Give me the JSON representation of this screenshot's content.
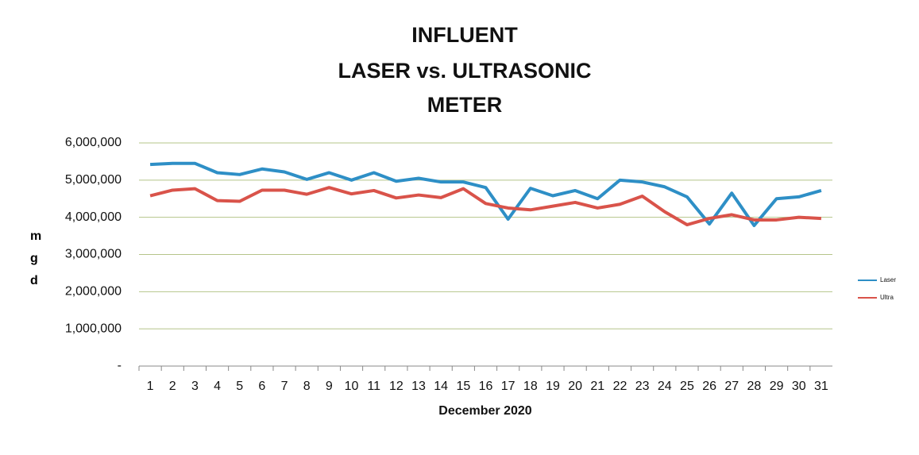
{
  "chart_data": {
    "type": "line",
    "title": [
      "INFLUENT",
      "LASER  vs. ULTRASONIC",
      "METER"
    ],
    "y_label": "mgd",
    "x_label": "December 2020",
    "categories": [
      "1",
      "2",
      "3",
      "4",
      "5",
      "6",
      "7",
      "8",
      "9",
      "10",
      "11",
      "12",
      "13",
      "14",
      "15",
      "16",
      "17",
      "18",
      "19",
      "20",
      "21",
      "22",
      "23",
      "24",
      "25",
      "26",
      "27",
      "28",
      "29",
      "30",
      "31"
    ],
    "series": [
      {
        "name": "Laser",
        "color": "#2e8fc6",
        "values": [
          5420000,
          5450000,
          5450000,
          5200000,
          5150000,
          5300000,
          5220000,
          5020000,
          5200000,
          5000000,
          5200000,
          4970000,
          5050000,
          4950000,
          4950000,
          4800000,
          3950000,
          4780000,
          4580000,
          4720000,
          4500000,
          5000000,
          4950000,
          4820000,
          4550000,
          3820000,
          4650000,
          3780000,
          4500000,
          4550000,
          4720000
        ]
      },
      {
        "name": "Ultra",
        "color": "#d9534a",
        "values": [
          4580000,
          4730000,
          4770000,
          4450000,
          4430000,
          4730000,
          4730000,
          4620000,
          4800000,
          4630000,
          4720000,
          4520000,
          4600000,
          4530000,
          4770000,
          4370000,
          4250000,
          4200000,
          4300000,
          4400000,
          4250000,
          4350000,
          4570000,
          4150000,
          3800000,
          3970000,
          4070000,
          3930000,
          3930000,
          4000000,
          3970000
        ]
      }
    ],
    "ylim": [
      0,
      6000000
    ],
    "yticks": [
      {
        "value": 0,
        "label": "-"
      },
      {
        "value": 1000000,
        "label": "1,000,000"
      },
      {
        "value": 2000000,
        "label": "2,000,000"
      },
      {
        "value": 3000000,
        "label": "3,000,000"
      },
      {
        "value": 4000000,
        "label": "4,000,000"
      },
      {
        "value": 5000000,
        "label": "5,000,000"
      },
      {
        "value": 6000000,
        "label": "6,000,000"
      }
    ],
    "grid": true,
    "legend": "right"
  }
}
